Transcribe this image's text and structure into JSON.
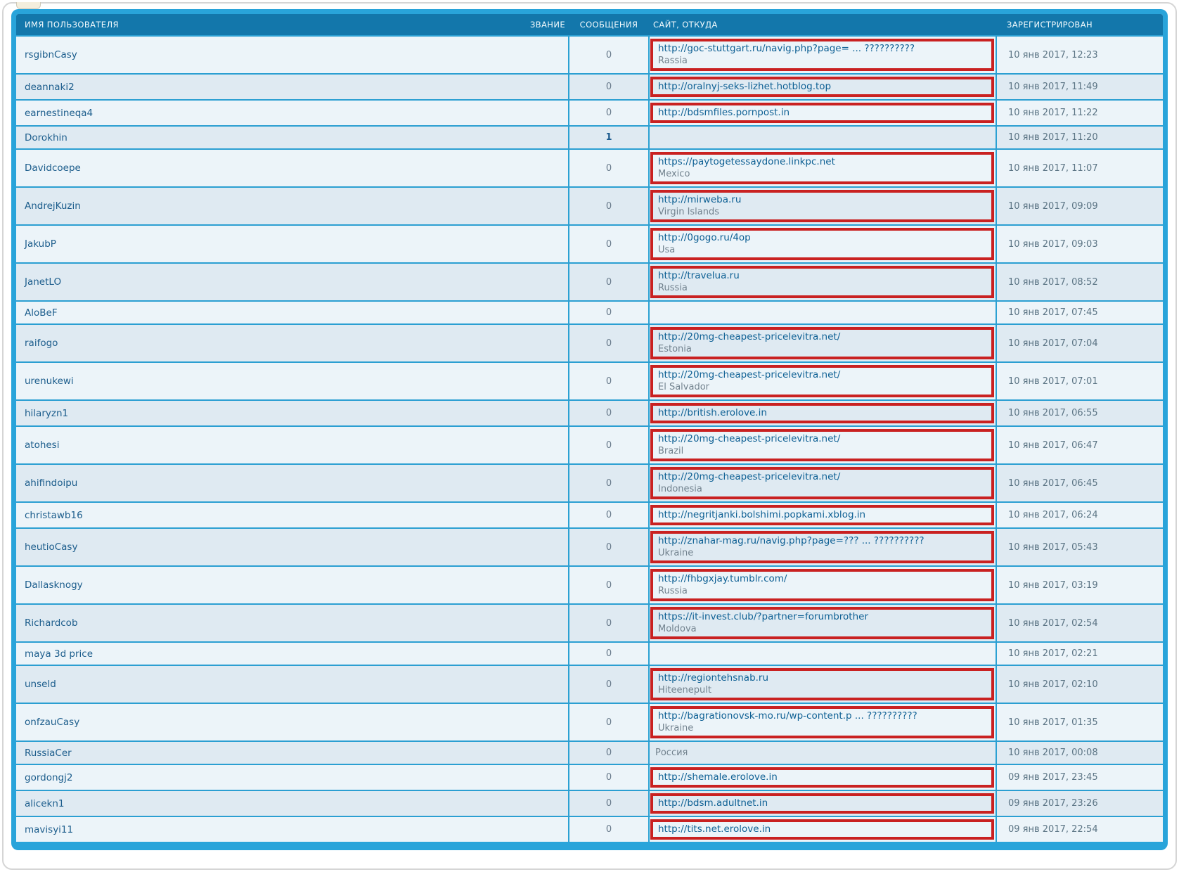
{
  "header": {
    "username_label": "ИМЯ ПОЛЬЗОВАТЕЛЯ",
    "rank_label": "ЗВАНИЕ",
    "posts_label": "СООБЩЕНИЯ",
    "site_label": "САЙТ, ОТКУДА",
    "joined_label": "ЗАРЕГИСТРИРОВАН"
  },
  "colors": {
    "header_bg": "#1377ab",
    "frame_blue": "#29a4da",
    "row_light": "#ecf4f9",
    "row_dark": "#dfeaf2",
    "grid_line": "#2b9fd2",
    "highlight_red": "#c92121",
    "username_link": "#1c5d8c",
    "site_link": "#0e6094",
    "muted_gray": "#72828e",
    "date_gray": "#5b7484"
  },
  "rows": [
    {
      "username": "rsgibnCasy",
      "posts": "0",
      "url": "http://goc-stuttgart.ru/navig.php?page= ... ??????????",
      "location": "Rassia",
      "boxed": true,
      "joined": "10 янв 2017, 12:23"
    },
    {
      "username": "deannaki2",
      "posts": "0",
      "url": "http://oralnyj-seks-lizhet.hotblog.top",
      "location": null,
      "boxed": true,
      "joined": "10 янв 2017, 11:49"
    },
    {
      "username": "earnestineqa4",
      "posts": "0",
      "url": "http://bdsmfiles.pornpost.in",
      "location": null,
      "boxed": true,
      "joined": "10 янв 2017, 11:22"
    },
    {
      "username": "Dorokhin",
      "posts": "1",
      "url": null,
      "location": null,
      "boxed": false,
      "joined": "10 янв 2017, 11:20"
    },
    {
      "username": "Davidcoepe",
      "posts": "0",
      "url": "https://paytogetessaydone.linkpc.net",
      "location": "Mexico",
      "boxed": true,
      "joined": "10 янв 2017, 11:07"
    },
    {
      "username": "AndrejKuzin",
      "posts": "0",
      "url": "http://mirweba.ru",
      "location": "Virgin Islands",
      "boxed": true,
      "joined": "10 янв 2017, 09:09"
    },
    {
      "username": "JakubP",
      "posts": "0",
      "url": "http://0gogo.ru/4op",
      "location": "Usa",
      "boxed": true,
      "joined": "10 янв 2017, 09:03"
    },
    {
      "username": "JanetLO",
      "posts": "0",
      "url": "http://travelua.ru",
      "location": "Russia",
      "boxed": true,
      "joined": "10 янв 2017, 08:52"
    },
    {
      "username": "AloBeF",
      "posts": "0",
      "url": null,
      "location": null,
      "boxed": false,
      "joined": "10 янв 2017, 07:45"
    },
    {
      "username": "raifogo",
      "posts": "0",
      "url": "http://20mg-cheapest-pricelevitra.net/",
      "location": "Estonia",
      "boxed": true,
      "joined": "10 янв 2017, 07:04"
    },
    {
      "username": "urenukewi",
      "posts": "0",
      "url": "http://20mg-cheapest-pricelevitra.net/",
      "location": "El Salvador",
      "boxed": true,
      "joined": "10 янв 2017, 07:01"
    },
    {
      "username": "hilaryzn1",
      "posts": "0",
      "url": "http://british.erolove.in",
      "location": null,
      "boxed": true,
      "joined": "10 янв 2017, 06:55"
    },
    {
      "username": "atohesi",
      "posts": "0",
      "url": "http://20mg-cheapest-pricelevitra.net/",
      "location": "Brazil",
      "boxed": true,
      "joined": "10 янв 2017, 06:47"
    },
    {
      "username": "ahifindoipu",
      "posts": "0",
      "url": "http://20mg-cheapest-pricelevitra.net/",
      "location": "Indonesia",
      "boxed": true,
      "joined": "10 янв 2017, 06:45"
    },
    {
      "username": "christawb16",
      "posts": "0",
      "url": "http://negritjanki.bolshimi.popkami.xblog.in",
      "location": null,
      "boxed": true,
      "joined": "10 янв 2017, 06:24"
    },
    {
      "username": "heutioCasy",
      "posts": "0",
      "url": "http://znahar-mag.ru/navig.php?page=??? ... ??????????",
      "location": "Ukraine",
      "boxed": true,
      "joined": "10 янв 2017, 05:43"
    },
    {
      "username": "Dallasknogy",
      "posts": "0",
      "url": "http://fhbgxjay.tumblr.com/",
      "location": "Russia",
      "boxed": true,
      "joined": "10 янв 2017, 03:19"
    },
    {
      "username": "Richardcob",
      "posts": "0",
      "url": "https://it-invest.club/?partner=forumbrother",
      "location": "Moldova",
      "boxed": true,
      "joined": "10 янв 2017, 02:54"
    },
    {
      "username": "maya 3d price",
      "posts": "0",
      "url": null,
      "location": null,
      "boxed": false,
      "joined": "10 янв 2017, 02:21"
    },
    {
      "username": "unseld",
      "posts": "0",
      "url": "http://regiontehsnab.ru",
      "location": "Hiteenepult",
      "boxed": true,
      "joined": "10 янв 2017, 02:10"
    },
    {
      "username": "onfzauCasy",
      "posts": "0",
      "url": "http://bagrationovsk-mo.ru/wp-content.p ... ??????????",
      "location": "Ukraine",
      "boxed": true,
      "joined": "10 янв 2017, 01:35"
    },
    {
      "username": "RussiaCer",
      "posts": "0",
      "url": null,
      "location": "Россия",
      "boxed": false,
      "joined": "10 янв 2017, 00:08"
    },
    {
      "username": "gordongj2",
      "posts": "0",
      "url": "http://shemale.erolove.in",
      "location": null,
      "boxed": true,
      "joined": "09 янв 2017, 23:45"
    },
    {
      "username": "alicekn1",
      "posts": "0",
      "url": "http://bdsm.adultnet.in",
      "location": null,
      "boxed": true,
      "joined": "09 янв 2017, 23:26"
    },
    {
      "username": "mavisyi11",
      "posts": "0",
      "url": "http://tits.net.erolove.in",
      "location": null,
      "boxed": true,
      "joined": "09 янв 2017, 22:54"
    }
  ]
}
